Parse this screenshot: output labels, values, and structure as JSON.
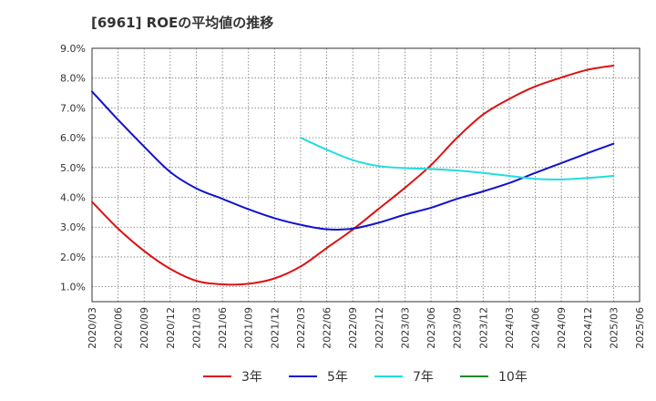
{
  "chart_data": {
    "type": "line",
    "title": "[6961]  ROEの平均値の推移",
    "xlabel": "",
    "ylabel": "",
    "ylim": [
      0.5,
      9.0
    ],
    "yticks": [
      1.0,
      2.0,
      3.0,
      4.0,
      5.0,
      6.0,
      7.0,
      8.0,
      9.0
    ],
    "ytick_labels": [
      "1.0%",
      "2.0%",
      "3.0%",
      "4.0%",
      "5.0%",
      "6.0%",
      "7.0%",
      "8.0%",
      "9.0%"
    ],
    "categories": [
      "2020/03",
      "2020/06",
      "2020/09",
      "2020/12",
      "2021/03",
      "2021/06",
      "2021/09",
      "2021/12",
      "2022/03",
      "2022/06",
      "2022/09",
      "2022/12",
      "2023/03",
      "2023/06",
      "2023/09",
      "2023/12",
      "2024/03",
      "2024/06",
      "2024/09",
      "2024/12",
      "2025/03",
      "2025/06"
    ],
    "grid": true,
    "legend_position": "bottom",
    "series": [
      {
        "name": "3年",
        "color": "#dd1111",
        "values": [
          3.85,
          2.95,
          2.2,
          1.6,
          1.2,
          1.08,
          1.1,
          1.28,
          1.68,
          2.3,
          2.92,
          3.62,
          4.32,
          5.08,
          6.0,
          6.78,
          7.3,
          7.72,
          8.02,
          8.28,
          8.42,
          null
        ]
      },
      {
        "name": "5年",
        "color": "#1111cc",
        "values": [
          7.55,
          6.6,
          5.7,
          4.85,
          4.3,
          3.95,
          3.6,
          3.3,
          3.08,
          2.93,
          2.95,
          3.15,
          3.42,
          3.65,
          3.95,
          4.2,
          4.48,
          4.82,
          5.15,
          5.48,
          5.8,
          null
        ]
      },
      {
        "name": "7年",
        "color": "#22dddd",
        "values": [
          null,
          null,
          null,
          null,
          null,
          null,
          null,
          null,
          6.0,
          5.6,
          5.25,
          5.05,
          4.98,
          4.95,
          4.9,
          4.82,
          4.72,
          4.62,
          4.6,
          4.65,
          4.72,
          null
        ]
      },
      {
        "name": "10年",
        "color": "#228822",
        "values": [
          null,
          null,
          null,
          null,
          null,
          null,
          null,
          null,
          null,
          null,
          null,
          null,
          null,
          null,
          null,
          null,
          null,
          null,
          null,
          null,
          null,
          null
        ]
      }
    ]
  }
}
